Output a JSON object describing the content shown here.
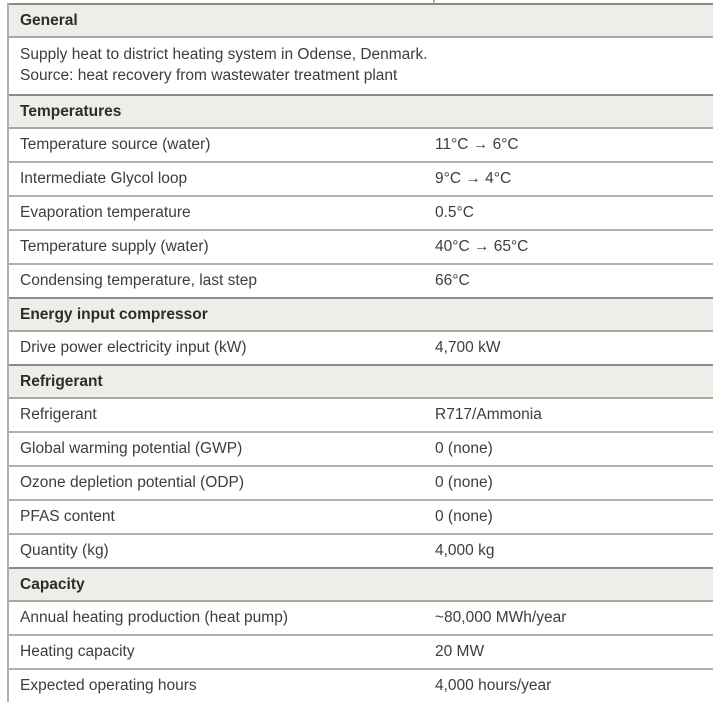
{
  "table": {
    "sections": [
      {
        "header": "General",
        "description_lines": [
          "Supply heat to district heating system in Odense, Denmark.",
          "Source: heat recovery from wastewater treatment plant"
        ],
        "rows": []
      },
      {
        "header": "Temperatures",
        "rows": [
          {
            "label": "Temperature source (water)",
            "value": "11°C → 6°C"
          },
          {
            "label": "Intermediate Glycol loop",
            "value": "9°C → 4°C"
          },
          {
            "label": "Evaporation temperature",
            "value": "0.5°C"
          },
          {
            "label": "Temperature supply (water)",
            "value": "40°C → 65°C"
          },
          {
            "label": "Condensing temperature, last step",
            "value": "66°C"
          }
        ]
      },
      {
        "header": "Energy input compressor",
        "rows": [
          {
            "label": "Drive power electricity input (kW)",
            "value": "4,700 kW"
          }
        ]
      },
      {
        "header": "Refrigerant",
        "rows": [
          {
            "label": "Refrigerant",
            "value": "R717/Ammonia"
          },
          {
            "label": "Global warming potential (GWP)",
            "value": "0 (none)"
          },
          {
            "label": "Ozone depletion potential (ODP)",
            "value": "0 (none)"
          },
          {
            "label": "PFAS content",
            "value": "0 (none)"
          },
          {
            "label": "Quantity (kg)",
            "value": "4,000 kg"
          }
        ]
      },
      {
        "header": "Capacity",
        "rows": [
          {
            "label": "Annual heating production (heat pump)",
            "value": "~80,000 MWh/year"
          },
          {
            "label": "Heating capacity",
            "value": "20 MW"
          },
          {
            "label": "Expected operating hours",
            "value": "4,000 hours/year"
          }
        ]
      }
    ],
    "colors": {
      "header_bg": "#eeedea",
      "header_top_border": "#8d8983",
      "row_border": "#b3afaa",
      "header_text": "#2d2c2a",
      "body_text": "#3e3d3b"
    }
  }
}
